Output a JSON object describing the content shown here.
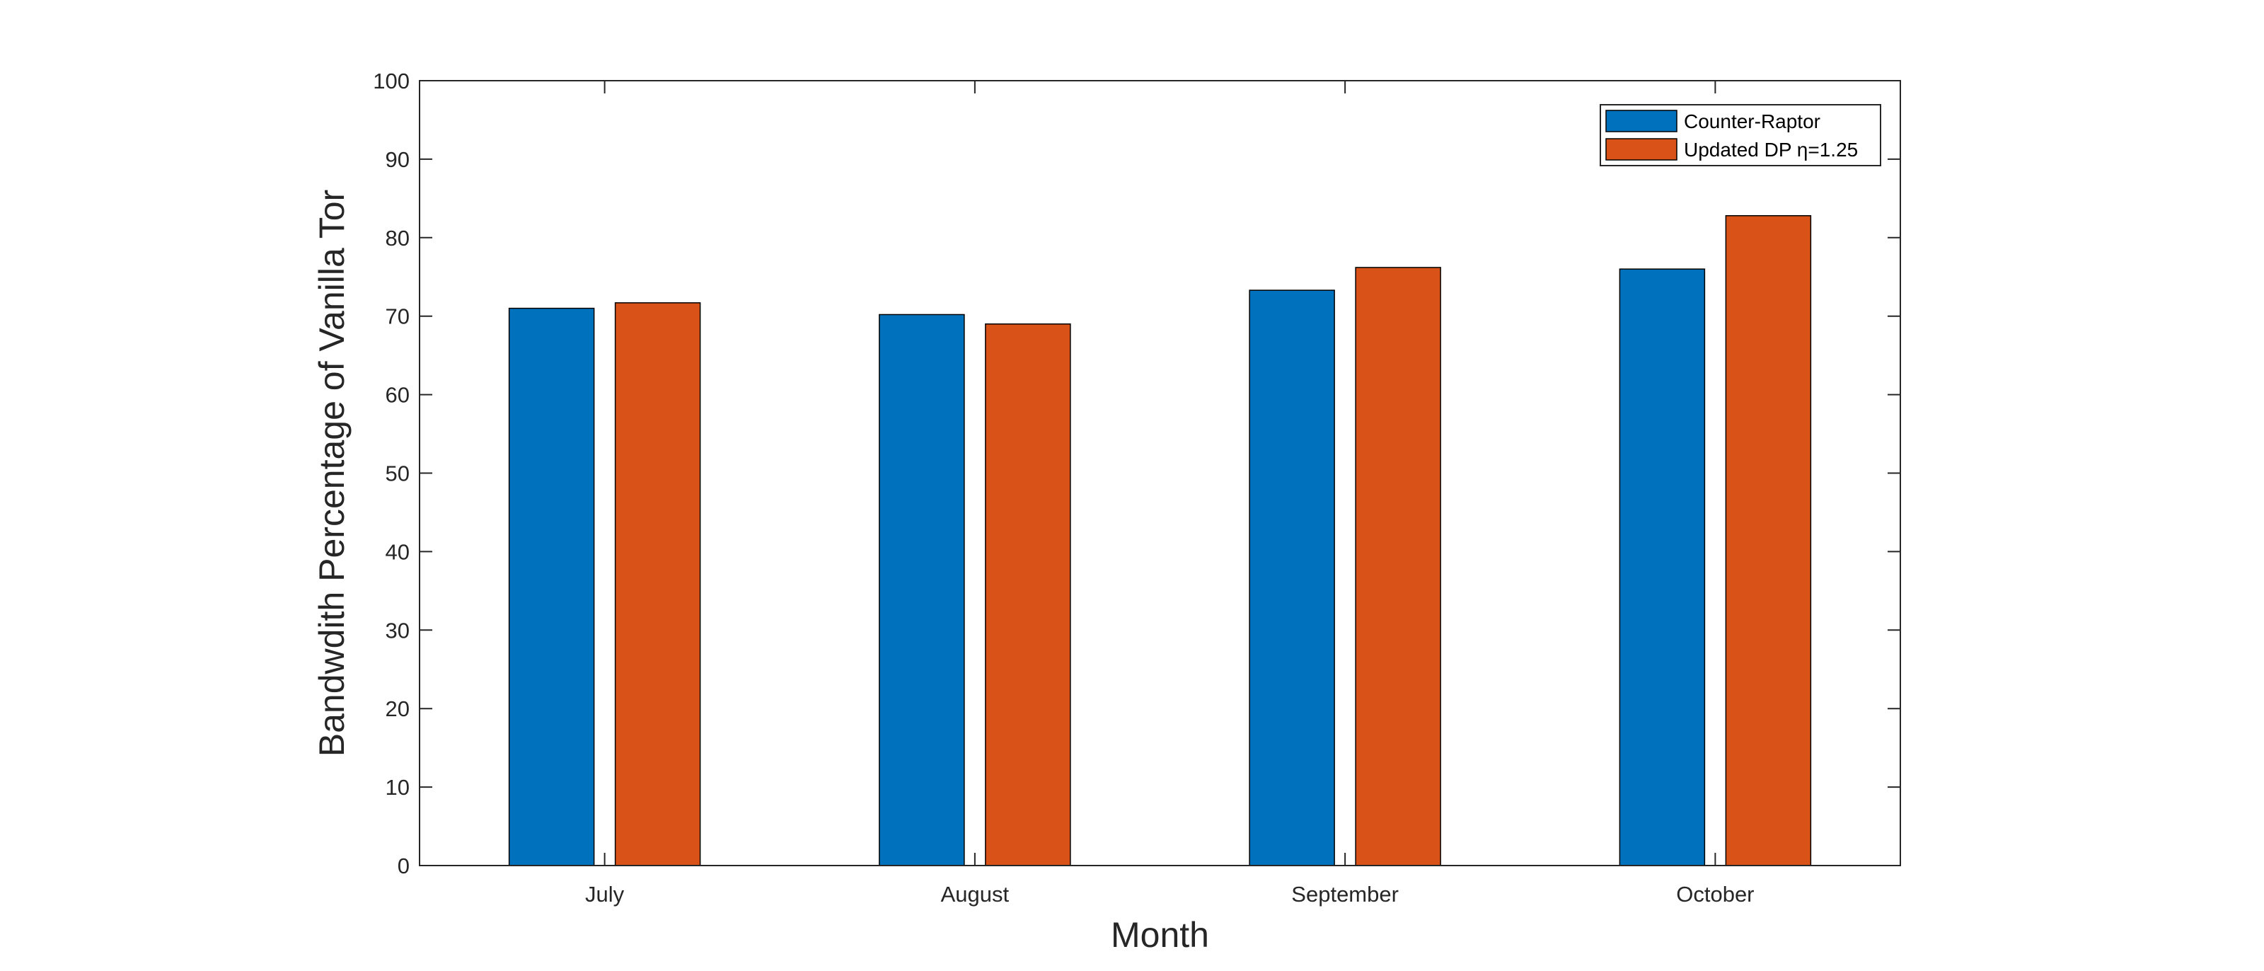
{
  "chart_data": {
    "type": "bar",
    "categories": [
      "July",
      "August",
      "September",
      "October"
    ],
    "series": [
      {
        "name": "Counter-Raptor",
        "values": [
          71.0,
          70.2,
          73.3,
          76.0
        ],
        "color": "#0072BD"
      },
      {
        "name": "Updated DP η=1.25",
        "values": [
          71.7,
          69.0,
          76.2,
          82.8
        ],
        "color": "#D95319"
      }
    ],
    "xlabel": "Month",
    "ylabel": "Bandwdith Percentage of Vanilla Tor",
    "ylim": [
      0,
      100
    ],
    "yticks": [
      0,
      10,
      20,
      30,
      40,
      50,
      60,
      70,
      80,
      90,
      100
    ],
    "grid": false,
    "legend_position": "top-right"
  }
}
